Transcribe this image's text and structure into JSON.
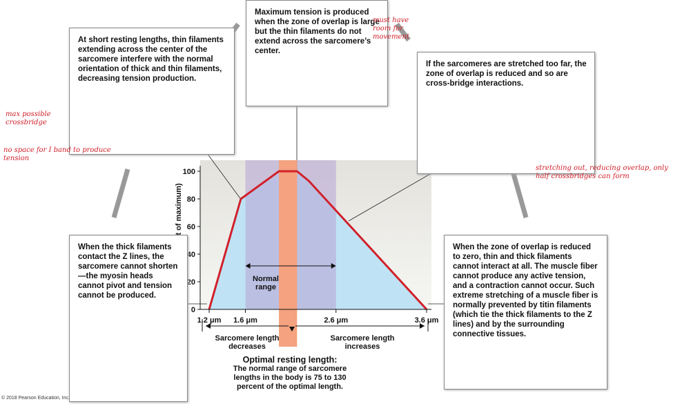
{
  "boxes": [
    {
      "text": "Maximum tension is produced when the zone of overlap is large but the thin filaments do not extend across the sarcomere’s center."
    },
    {
      "text": "At short resting lengths, thin filaments extending across the center of the sarcomere interfere with the normal orientation of thick and thin filaments, decreasing tension production."
    },
    {
      "text": "If the sarcomeres are stretched too far, the zone of overlap is reduced and so are cross-bridge interactions."
    },
    {
      "text": "When the thick filaments contact the Z lines, the sarcomere cannot shorten—the myosin heads cannot pivot and tension cannot be produced."
    },
    {
      "text": "When the zone of overlap is reduced to zero, thin and thick filaments cannot interact at all. The muscle fiber cannot produce any active tension, and a contraction cannot occur. Such extreme stretching of a muscle fiber is normally prevented by titin filaments (which tie the thick filaments to the Z lines) and by the surrounding connective tissues."
    }
  ],
  "notes": [
    "must have room for movement",
    "max possible crossbridge",
    "no space for I band to produce tension",
    "stretching out, reducing overlap, only half crossbridges can form"
  ],
  "chart": {
    "y_label": "Tension (percent of maximum)",
    "ylim": [
      0,
      100
    ],
    "yticks": [
      0,
      20,
      40,
      60,
      80,
      100
    ],
    "xlim": [
      1.2,
      3.6
    ],
    "xticks": [
      {
        "value": 1.2,
        "label": "1.2 μm"
      },
      {
        "value": 1.6,
        "label": "1.6 μm"
      },
      {
        "value": 2.6,
        "label": "2.6 μm"
      },
      {
        "value": 3.6,
        "label": "3.6 μm"
      }
    ],
    "curve": {
      "x": [
        1.2,
        1.55,
        1.97,
        2.17,
        2.3,
        3.6
      ],
      "y": [
        0,
        80,
        100,
        100,
        93,
        0
      ]
    },
    "normal_range": {
      "from": 1.6,
      "to": 2.6,
      "label": "Normal range"
    },
    "optimal_band": {
      "from": 1.97,
      "to": 2.17
    },
    "decreases": "Sarcomere length decreases",
    "increases": "Sarcomere length increases",
    "optimal_title": "Optimal resting length:",
    "optimal_text": "The normal range of sarcomere lengths in the body is 75 to 130 percent of the optimal length."
  },
  "copyright": "© 2018 Pearson Education, Inc."
}
